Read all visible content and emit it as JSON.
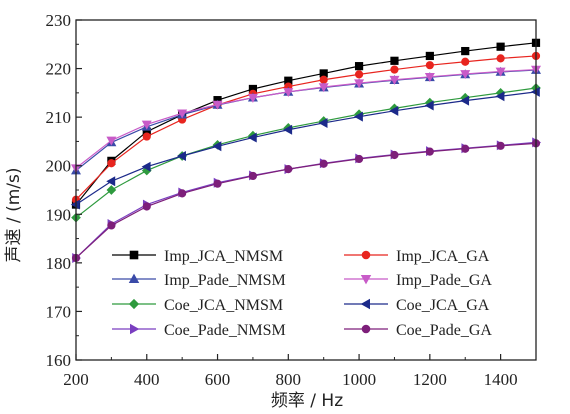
{
  "chart_data": {
    "type": "line",
    "xlabel": "频率 / Hz",
    "ylabel": "声速 / (m/s)",
    "xlim": [
      200,
      1500
    ],
    "ylim": [
      160,
      230
    ],
    "xticks": [
      200,
      400,
      600,
      800,
      1000,
      1200,
      1400
    ],
    "yticks": [
      160,
      170,
      180,
      190,
      200,
      210,
      220,
      230
    ],
    "legend_position": "bottom",
    "grid": false,
    "x": [
      200,
      300,
      400,
      500,
      600,
      700,
      800,
      900,
      1000,
      1100,
      1200,
      1300,
      1400,
      1500
    ],
    "series": [
      {
        "name": "Imp_JCA_NMSM",
        "color": "#000000",
        "marker": "square",
        "values": [
          192,
          201,
          207,
          210.5,
          213.5,
          215.8,
          217.5,
          219,
          220.5,
          221.6,
          222.6,
          223.6,
          224.5,
          225.3
        ]
      },
      {
        "name": "Imp_JCA_GA",
        "color": "#e8251f",
        "marker": "circle",
        "values": [
          193,
          200.5,
          206,
          209.5,
          212.5,
          214.8,
          216.3,
          217.7,
          218.8,
          219.8,
          220.7,
          221.4,
          222.1,
          222.6
        ]
      },
      {
        "name": "Imp_Pade_NMSM",
        "color": "#3a4aa8",
        "marker": "triangle-up",
        "values": [
          199,
          204.8,
          208,
          210.5,
          212.5,
          214,
          215.2,
          216.1,
          216.9,
          217.6,
          218.2,
          218.8,
          219.3,
          219.7
        ]
      },
      {
        "name": "Imp_Pade_GA",
        "color": "#c85bc8",
        "marker": "triangle-down",
        "values": [
          199.5,
          205.2,
          208.5,
          210.8,
          212.6,
          214,
          215.2,
          216.2,
          217,
          217.7,
          218.3,
          218.9,
          219.4,
          219.8
        ]
      },
      {
        "name": "Coe_JCA_NMSM",
        "color": "#2e9a3e",
        "marker": "diamond",
        "values": [
          189.3,
          195,
          199,
          202,
          204.3,
          206.2,
          207.8,
          209.2,
          210.6,
          211.8,
          213,
          214,
          215,
          216
        ]
      },
      {
        "name": "Coe_JCA_GA",
        "color": "#1c2a8a",
        "marker": "triangle-left",
        "values": [
          192,
          196.8,
          199.8,
          202,
          204,
          205.8,
          207.4,
          208.8,
          210.1,
          211.3,
          212.4,
          213.4,
          214.3,
          215.2
        ]
      },
      {
        "name": "Coe_Pade_NMSM",
        "color": "#7a3fc0",
        "marker": "triangle-right",
        "values": [
          181,
          188,
          192,
          194.5,
          196.5,
          198,
          199.3,
          200.5,
          201.5,
          202.3,
          203,
          203.6,
          204.2,
          204.8
        ]
      },
      {
        "name": "Coe_Pade_GA",
        "color": "#7d1f7a",
        "marker": "circle",
        "values": [
          181,
          187.7,
          191.6,
          194.3,
          196.3,
          197.9,
          199.3,
          200.4,
          201.4,
          202.2,
          202.9,
          203.5,
          204.1,
          204.6
        ]
      }
    ]
  }
}
